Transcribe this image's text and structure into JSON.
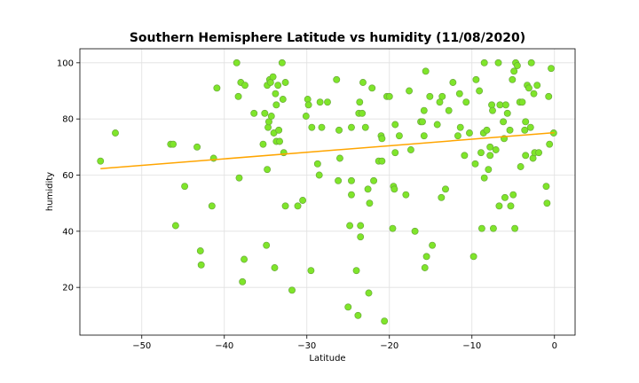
{
  "chart_data": {
    "type": "scatter",
    "title": "Southern Hemisphere Latitude vs humidity (11/08/2020)",
    "xlabel": "Latitude",
    "ylabel": "humidity",
    "xlim": [
      -57.5,
      2.5
    ],
    "ylim": [
      3,
      105
    ],
    "xticks": [
      -50,
      -40,
      -30,
      -20,
      -10,
      0
    ],
    "xtick_labels": [
      "−50",
      "−40",
      "−30",
      "−20",
      "−10",
      "0"
    ],
    "yticks": [
      20,
      40,
      60,
      80,
      100
    ],
    "ytick_labels": [
      "20",
      "40",
      "60",
      "80",
      "100"
    ],
    "grid": true,
    "marker_color": "#7fe52a",
    "marker_edge_color": "#6aaa3a",
    "line_color": "#ffa500",
    "regression_line": {
      "x": [
        -55,
        0
      ],
      "y": [
        62.3,
        75.1
      ]
    },
    "points": [
      [
        -55.0,
        65
      ],
      [
        -53.2,
        75
      ],
      [
        -46.5,
        71
      ],
      [
        -46.2,
        71
      ],
      [
        -45.9,
        42
      ],
      [
        -44.8,
        56
      ],
      [
        -43.3,
        70
      ],
      [
        -42.9,
        33
      ],
      [
        -42.8,
        28
      ],
      [
        -41.5,
        49
      ],
      [
        -41.3,
        66
      ],
      [
        -40.9,
        91
      ],
      [
        -38.5,
        100
      ],
      [
        -38.3,
        88
      ],
      [
        -38.2,
        59
      ],
      [
        -38.0,
        93
      ],
      [
        -37.8,
        22
      ],
      [
        -37.6,
        30
      ],
      [
        -37.5,
        92
      ],
      [
        -36.4,
        82
      ],
      [
        -35.3,
        71
      ],
      [
        -35.1,
        82
      ],
      [
        -34.9,
        35
      ],
      [
        -34.8,
        62
      ],
      [
        -34.8,
        92
      ],
      [
        -34.7,
        77
      ],
      [
        -34.6,
        79
      ],
      [
        -34.5,
        94
      ],
      [
        -34.4,
        93
      ],
      [
        -34.3,
        81
      ],
      [
        -34.1,
        95
      ],
      [
        -34.0,
        75
      ],
      [
        -33.9,
        27
      ],
      [
        -33.8,
        89
      ],
      [
        -33.7,
        85
      ],
      [
        -33.7,
        72
      ],
      [
        -33.5,
        92
      ],
      [
        -33.4,
        76
      ],
      [
        -33.3,
        72
      ],
      [
        -33.0,
        100
      ],
      [
        -32.9,
        87
      ],
      [
        -32.8,
        68
      ],
      [
        -32.6,
        93
      ],
      [
        -32.6,
        49
      ],
      [
        -31.8,
        19
      ],
      [
        -31.1,
        49
      ],
      [
        -30.5,
        51
      ],
      [
        -30.1,
        81
      ],
      [
        -29.9,
        87
      ],
      [
        -29.8,
        85
      ],
      [
        -29.5,
        26
      ],
      [
        -29.4,
        77
      ],
      [
        -28.7,
        64
      ],
      [
        -28.5,
        60
      ],
      [
        -28.4,
        86
      ],
      [
        -28.2,
        77
      ],
      [
        -27.5,
        86
      ],
      [
        -26.4,
        94
      ],
      [
        -26.2,
        58
      ],
      [
        -26.1,
        76
      ],
      [
        -26.0,
        66
      ],
      [
        -25.0,
        13
      ],
      [
        -24.8,
        42
      ],
      [
        -24.6,
        53
      ],
      [
        -24.6,
        58
      ],
      [
        -24.6,
        77
      ],
      [
        -24.0,
        26
      ],
      [
        -23.8,
        10
      ],
      [
        -23.7,
        82
      ],
      [
        -23.6,
        86
      ],
      [
        -23.5,
        38
      ],
      [
        -23.5,
        42
      ],
      [
        -23.3,
        82
      ],
      [
        -23.2,
        93
      ],
      [
        -22.9,
        77
      ],
      [
        -22.6,
        55
      ],
      [
        -22.5,
        18
      ],
      [
        -22.4,
        50
      ],
      [
        -22.1,
        91
      ],
      [
        -21.9,
        58
      ],
      [
        -21.3,
        65
      ],
      [
        -21.0,
        74
      ],
      [
        -20.9,
        65
      ],
      [
        -20.9,
        73
      ],
      [
        -20.6,
        8
      ],
      [
        -20.3,
        88
      ],
      [
        -20.0,
        88
      ],
      [
        -19.6,
        41
      ],
      [
        -19.5,
        56
      ],
      [
        -19.4,
        55
      ],
      [
        -19.3,
        68
      ],
      [
        -19.3,
        78
      ],
      [
        -18.8,
        74
      ],
      [
        -18.0,
        53
      ],
      [
        -17.6,
        90
      ],
      [
        -17.4,
        69
      ],
      [
        -16.9,
        40
      ],
      [
        -16.2,
        79
      ],
      [
        -16.0,
        79
      ],
      [
        -15.8,
        74
      ],
      [
        -15.8,
        83
      ],
      [
        -15.7,
        27
      ],
      [
        -15.6,
        97
      ],
      [
        -15.5,
        31
      ],
      [
        -15.1,
        88
      ],
      [
        -14.8,
        35
      ],
      [
        -14.2,
        78
      ],
      [
        -13.9,
        86
      ],
      [
        -13.7,
        52
      ],
      [
        -13.6,
        88
      ],
      [
        -13.2,
        55
      ],
      [
        -12.8,
        83
      ],
      [
        -12.3,
        93
      ],
      [
        -11.7,
        74
      ],
      [
        -11.5,
        89
      ],
      [
        -11.4,
        77
      ],
      [
        -10.9,
        67
      ],
      [
        -10.7,
        86
      ],
      [
        -10.3,
        75
      ],
      [
        -9.8,
        31
      ],
      [
        -9.6,
        64
      ],
      [
        -9.5,
        94
      ],
      [
        -9.1,
        90
      ],
      [
        -8.9,
        68
      ],
      [
        -8.8,
        41
      ],
      [
        -8.6,
        75
      ],
      [
        -8.5,
        100
      ],
      [
        -8.5,
        59
      ],
      [
        -8.2,
        76
      ],
      [
        -8.0,
        62
      ],
      [
        -7.8,
        70
      ],
      [
        -7.8,
        67
      ],
      [
        -7.6,
        85
      ],
      [
        -7.5,
        83
      ],
      [
        -7.4,
        41
      ],
      [
        -7.1,
        69
      ],
      [
        -6.8,
        100
      ],
      [
        -6.7,
        49
      ],
      [
        -6.6,
        85
      ],
      [
        -6.2,
        79
      ],
      [
        -6.1,
        73
      ],
      [
        -6.0,
        52
      ],
      [
        -5.9,
        85
      ],
      [
        -5.7,
        82
      ],
      [
        -5.4,
        76
      ],
      [
        -5.3,
        49
      ],
      [
        -5.1,
        94
      ],
      [
        -5.0,
        53
      ],
      [
        -4.9,
        97
      ],
      [
        -4.8,
        41
      ],
      [
        -4.7,
        100
      ],
      [
        -4.5,
        99
      ],
      [
        -4.2,
        86
      ],
      [
        -4.1,
        63
      ],
      [
        -3.9,
        86
      ],
      [
        -3.6,
        76
      ],
      [
        -3.5,
        79
      ],
      [
        -3.5,
        67
      ],
      [
        -3.3,
        92
      ],
      [
        -3.1,
        91
      ],
      [
        -2.9,
        77
      ],
      [
        -2.8,
        100
      ],
      [
        -2.6,
        66
      ],
      [
        -2.5,
        89
      ],
      [
        -2.4,
        68
      ],
      [
        -2.1,
        92
      ],
      [
        -1.9,
        68
      ],
      [
        -1.0,
        56
      ],
      [
        -0.9,
        50
      ],
      [
        -0.7,
        88
      ],
      [
        -0.6,
        71
      ],
      [
        -0.4,
        98
      ],
      [
        -0.1,
        75
      ]
    ]
  }
}
